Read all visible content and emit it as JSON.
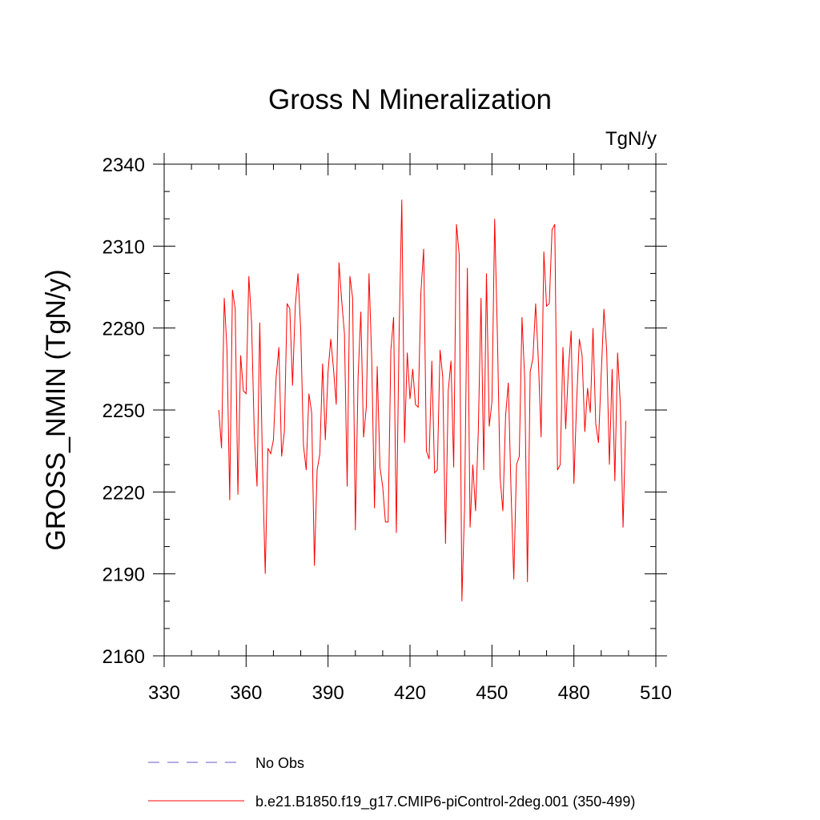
{
  "chart_data": {
    "type": "line",
    "title": "Gross N Mineralization",
    "units": "TgN/y",
    "xlabel": "",
    "ylabel": "GROSS_NMIN  (TgN/y)",
    "xlim": [
      330,
      510
    ],
    "ylim": [
      2160,
      2340
    ],
    "xticks": [
      330,
      360,
      390,
      420,
      450,
      480,
      510
    ],
    "yticks": [
      2160,
      2190,
      2220,
      2250,
      2280,
      2310,
      2340
    ],
    "x_start": 350,
    "x_step": 1,
    "series": [
      {
        "name": "b.e21.B1850.f19_g17.CMIP6-piControl-2deg.001 (350-499)",
        "color": "#ff0000",
        "style": "solid",
        "values": [
          2250,
          2236,
          2291,
          2272,
          2217,
          2294,
          2287,
          2219,
          2270,
          2257,
          2256,
          2299,
          2282,
          2241,
          2222,
          2282,
          2230,
          2190,
          2236,
          2234,
          2239,
          2262,
          2273,
          2233,
          2242,
          2289,
          2287,
          2259,
          2288,
          2300,
          2279,
          2237,
          2228,
          2256,
          2249,
          2193,
          2228,
          2234,
          2267,
          2239,
          2264,
          2276,
          2265,
          2252,
          2304,
          2290,
          2278,
          2222,
          2299,
          2291,
          2206,
          2262,
          2286,
          2240,
          2251,
          2300,
          2268,
          2214,
          2266,
          2229,
          2222,
          2209,
          2209,
          2272,
          2284,
          2205,
          2277,
          2327,
          2238,
          2271,
          2254,
          2265,
          2252,
          2251,
          2293,
          2309,
          2235,
          2232,
          2268,
          2227,
          2228,
          2272,
          2262,
          2201,
          2257,
          2268,
          2229,
          2318,
          2307,
          2180,
          2215,
          2302,
          2207,
          2230,
          2213,
          2242,
          2291,
          2228,
          2300,
          2244,
          2253,
          2320,
          2277,
          2225,
          2213,
          2248,
          2260,
          2220,
          2188,
          2230,
          2233,
          2284,
          2261,
          2187,
          2264,
          2269,
          2289,
          2268,
          2240,
          2308,
          2288,
          2289,
          2316,
          2318,
          2228,
          2230,
          2273,
          2243,
          2265,
          2279,
          2223,
          2253,
          2276,
          2270,
          2242,
          2258,
          2249,
          2280,
          2245,
          2238,
          2263,
          2287,
          2272,
          2230,
          2265,
          2224,
          2271,
          2252,
          2207,
          2246
        ]
      },
      {
        "name": "No Obs",
        "color": "#6a5acd",
        "style": "dashed",
        "values": []
      }
    ],
    "legend_position": "bottom"
  }
}
